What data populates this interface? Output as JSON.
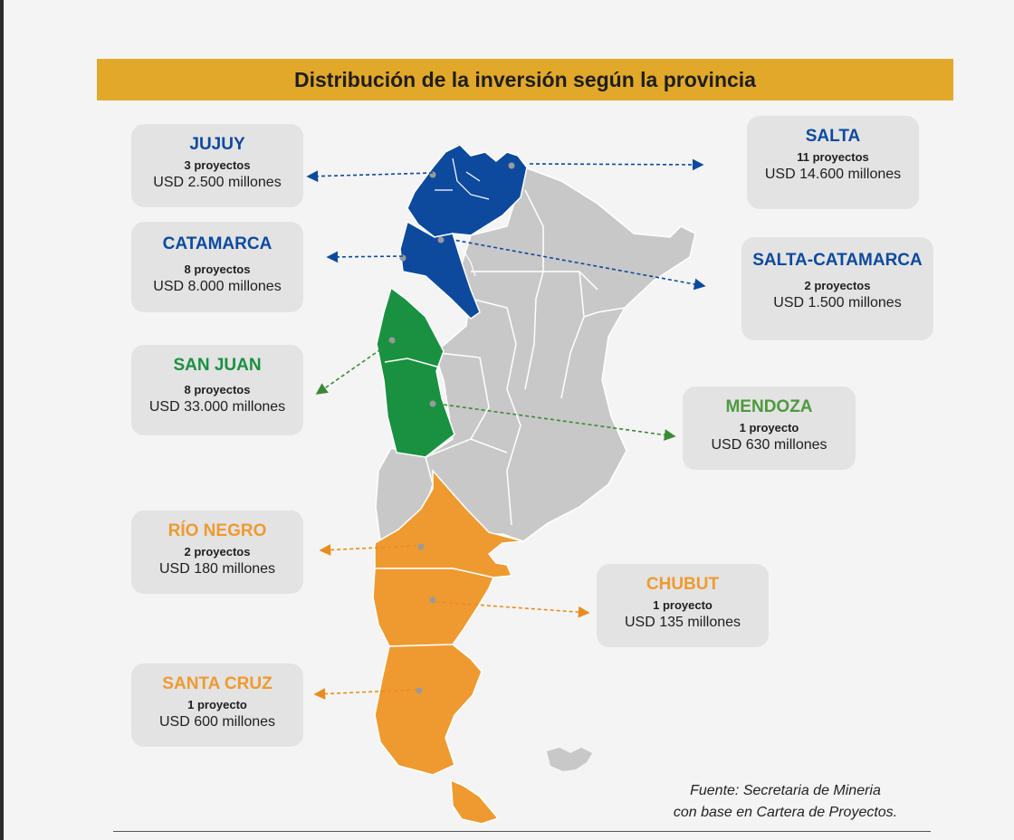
{
  "title": "Distribución de la inversión según la provincia",
  "colors": {
    "title_bar": "#e2a82a",
    "blue": "#0d4a9e",
    "green": "#1a9141",
    "orange": "#ef9a30",
    "mendoza_label": "#4e9a3e",
    "gray": "#c8c8c8"
  },
  "provinces": [
    {
      "name": "JUJUY",
      "projects": "3 proyectos",
      "investment": "USD 2.500 millones",
      "color": "#0d4a9e"
    },
    {
      "name": "SALTA",
      "projects": "11 proyectos",
      "investment": "USD 14.600 millones",
      "color": "#0d4a9e"
    },
    {
      "name": "CATAMARCA",
      "projects": "8 proyectos",
      "investment": "USD 8.000 millones",
      "color": "#0d4a9e"
    },
    {
      "name": "SALTA-CATAMARCA",
      "projects": "2 proyectos",
      "investment": "USD 1.500 millones",
      "color": "#0d4a9e"
    },
    {
      "name": "SAN JUAN",
      "projects": "8 proyectos",
      "investment": "USD 33.000 millones",
      "color": "#1a9141"
    },
    {
      "name": "MENDOZA",
      "projects": "1 proyecto",
      "investment": "USD 630 millones",
      "color": "#4e9a3e"
    },
    {
      "name": "RÍO NEGRO",
      "projects": "2 proyectos",
      "investment": "USD 180 millones",
      "color": "#ef9a30"
    },
    {
      "name": "CHUBUT",
      "projects": "1 proyecto",
      "investment": "USD 135 millones",
      "color": "#ef9a30"
    },
    {
      "name": "SANTA CRUZ",
      "projects": "1 proyecto",
      "investment": "USD 600 millones",
      "color": "#ef9a30"
    }
  ],
  "source": {
    "line1": "Fuente: Secretaria de Mineria",
    "line2": "con base en Cartera de Proyectos."
  }
}
